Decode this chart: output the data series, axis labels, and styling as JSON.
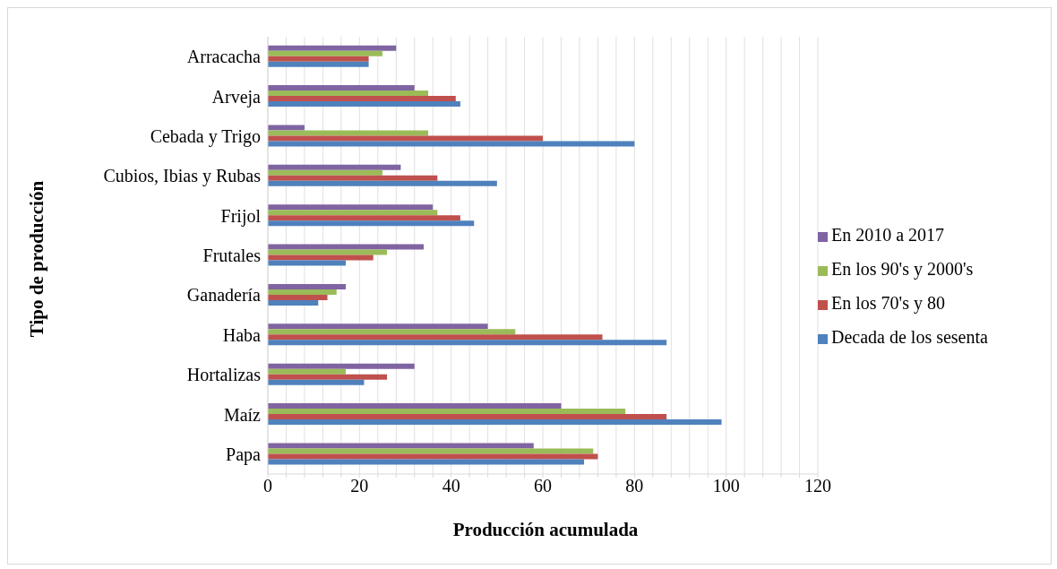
{
  "chart_data": {
    "type": "bar",
    "orientation": "horizontal",
    "xlabel": "Producción acumulada",
    "ylabel": "Tipo de producción",
    "categories": [
      "Arracacha",
      "Arveja",
      "Cebada y Trigo",
      "Cubios, Ibias y Rubas",
      "Frijol",
      "Frutales",
      "Ganadería",
      "Haba",
      "Hortalizas",
      "Maíz",
      "Papa"
    ],
    "series": [
      {
        "name": "En 2010 a 2017",
        "color": "#8064a2",
        "values": [
          28,
          32,
          8,
          29,
          36,
          34,
          17,
          48,
          32,
          64,
          58
        ]
      },
      {
        "name": "En los 90's y 2000's",
        "color": "#9bbb59",
        "values": [
          25,
          35,
          35,
          25,
          37,
          26,
          15,
          54,
          17,
          78,
          71
        ]
      },
      {
        "name": "En los 70's y 80",
        "color": "#c0504d",
        "values": [
          22,
          41,
          60,
          37,
          42,
          23,
          13,
          73,
          26,
          87,
          72
        ]
      },
      {
        "name": "Decada de los sesenta",
        "color": "#4f81bd",
        "values": [
          22,
          42,
          80,
          50,
          45,
          17,
          11,
          87,
          21,
          99,
          69
        ]
      }
    ],
    "xlim": [
      0,
      120
    ],
    "xticks": [
      0,
      {
        "value": 4,
        "label": null
      },
      {
        "value": 8,
        "label": null
      },
      {
        "value": 12,
        "label": null
      },
      {
        "value": 16,
        "label": null
      },
      20,
      {
        "value": 24,
        "label": null
      },
      {
        "value": 28,
        "label": null
      },
      {
        "value": 32,
        "label": null
      },
      {
        "value": 36,
        "label": null
      },
      40,
      {
        "value": 44,
        "label": null
      },
      {
        "value": 48,
        "label": null
      },
      {
        "value": 52,
        "label": null
      },
      {
        "value": 56,
        "label": null
      },
      60,
      {
        "value": 64,
        "label": null
      },
      {
        "value": 68,
        "label": null
      },
      {
        "value": 72,
        "label": null
      },
      {
        "value": 76,
        "label": null
      },
      80,
      {
        "value": 84,
        "label": null
      },
      {
        "value": 88,
        "label": null
      },
      {
        "value": 92,
        "label": null
      },
      {
        "value": 96,
        "label": null
      },
      100,
      {
        "value": 104,
        "label": null
      },
      {
        "value": 108,
        "label": null
      },
      {
        "value": 112,
        "label": null
      },
      {
        "value": 116,
        "label": null
      },
      120
    ],
    "grid": "x",
    "legend": "right"
  }
}
